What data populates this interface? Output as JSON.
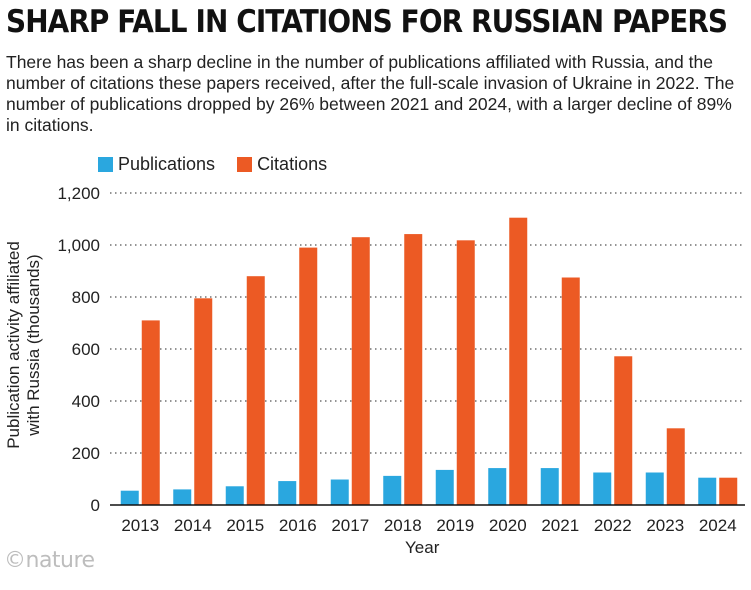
{
  "header": {
    "title": "SHARP FALL IN CITATIONS FOR RUSSIAN PAPERS",
    "subtitle": "There has been a sharp decline in the number of publications affiliated with Russia, and the number of citations these papers received, after the full-scale invasion of Ukraine in 2022. The number of publications dropped by 26% between 2021 and 2024, with a larger decline of 89% in citations."
  },
  "brand": {
    "label": "©nature"
  },
  "colors": {
    "publications": "#2aa7df",
    "citations": "#ec5a24",
    "grid": "#555555",
    "axis": "#111111"
  },
  "chart_data": {
    "type": "bar",
    "title": "SHARP FALL IN CITATIONS FOR RUSSIAN PAPERS",
    "xlabel": "Year",
    "ylabel_line1": "Publication activity affiliated",
    "ylabel_line2": "with Russia (thousands)",
    "ylim": [
      0,
      1200
    ],
    "yticks": [
      0,
      200,
      400,
      600,
      800,
      1000,
      1200
    ],
    "ytick_labels": [
      "0",
      "200",
      "400",
      "600",
      "800",
      "1,000",
      "1,200"
    ],
    "grid": "horizontal-dotted",
    "legend_position": "top-left",
    "categories": [
      "2013",
      "2014",
      "2015",
      "2016",
      "2017",
      "2018",
      "2019",
      "2020",
      "2021",
      "2022",
      "2023",
      "2024"
    ],
    "series": [
      {
        "name": "Publications",
        "color": "#2aa7df",
        "values": [
          55,
          60,
          72,
          92,
          98,
          112,
          135,
          142,
          142,
          125,
          125,
          105
        ]
      },
      {
        "name": "Citations",
        "color": "#ec5a24",
        "values": [
          710,
          795,
          880,
          990,
          1030,
          1042,
          1018,
          1105,
          875,
          572,
          295,
          105
        ]
      }
    ]
  }
}
